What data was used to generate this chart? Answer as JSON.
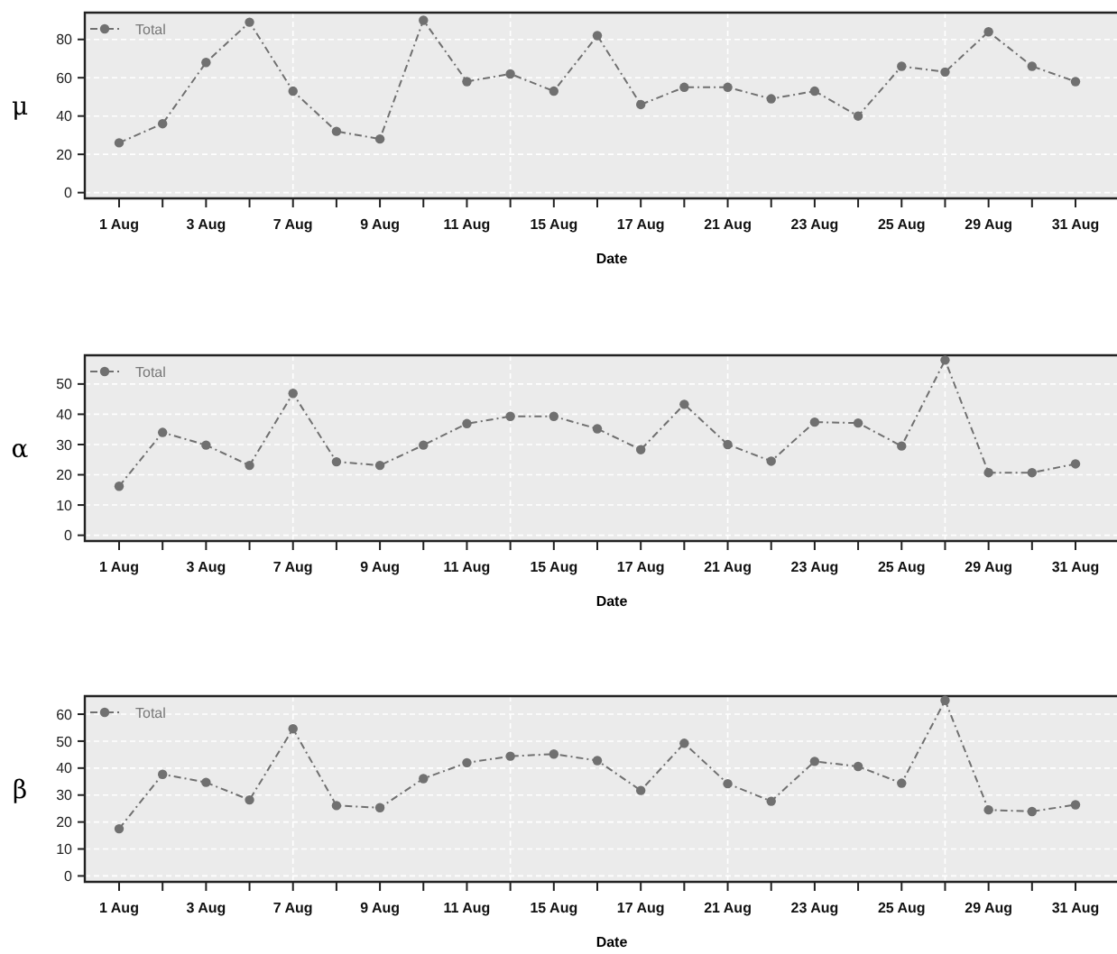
{
  "chart_data": [
    {
      "type": "line",
      "ylabel": "μ",
      "xlabel": "Date",
      "categories": [
        "1 Aug",
        null,
        "3 Aug",
        null,
        "7 Aug",
        null,
        "9 Aug",
        null,
        "11 Aug",
        null,
        "15 Aug",
        null,
        "17 Aug",
        null,
        "21 Aug",
        null,
        "23 Aug",
        null,
        "25 Aug",
        null,
        "29 Aug",
        null,
        "31 Aug"
      ],
      "series": [
        {
          "name": "Total",
          "color": "#707070",
          "values": [
            26,
            36,
            68,
            89,
            53,
            32,
            28,
            90,
            58,
            62,
            53,
            82,
            46,
            55,
            55,
            49,
            53,
            40,
            66,
            63,
            84,
            66,
            58
          ]
        }
      ],
      "ylim": [
        -3,
        94
      ],
      "yticks": [
        0,
        20,
        40,
        60,
        80
      ],
      "grid": true,
      "legend": "top left",
      "marker": "circle",
      "line_style": "dashed"
    },
    {
      "type": "line",
      "ylabel": "α",
      "xlabel": "Date",
      "categories": [
        "1 Aug",
        null,
        "3 Aug",
        null,
        "7 Aug",
        null,
        "9 Aug",
        null,
        "11 Aug",
        null,
        "15 Aug",
        null,
        "17 Aug",
        null,
        "21 Aug",
        null,
        "23 Aug",
        null,
        "25 Aug",
        null,
        "29 Aug",
        null,
        "31 Aug"
      ],
      "series": [
        {
          "name": "Total",
          "color": "#707070",
          "values": [
            16.2,
            34,
            29.8,
            23.1,
            46.9,
            24.3,
            23.1,
            29.8,
            36.9,
            39.3,
            39.3,
            35.2,
            28.3,
            43.3,
            30,
            24.5,
            37.4,
            37.1,
            29.5,
            57.9,
            20.7,
            20.7,
            23.6
          ]
        }
      ],
      "ylim": [
        -1.9,
        59.5
      ],
      "yticks": [
        0,
        10,
        20,
        30,
        40,
        50
      ],
      "grid": true,
      "legend": "top left",
      "marker": "circle",
      "line_style": "dashed"
    },
    {
      "type": "line",
      "ylabel": "β",
      "xlabel": "Date",
      "categories": [
        "1 Aug",
        null,
        "3 Aug",
        null,
        "7 Aug",
        null,
        "9 Aug",
        null,
        "11 Aug",
        null,
        "15 Aug",
        null,
        "17 Aug",
        null,
        "21 Aug",
        null,
        "23 Aug",
        null,
        "25 Aug",
        null,
        "29 Aug",
        null,
        "31 Aug"
      ],
      "series": [
        {
          "name": "Total",
          "color": "#707070",
          "values": [
            17.5,
            37.7,
            34.7,
            28.2,
            54.6,
            26.1,
            25.3,
            36.1,
            42,
            44.4,
            45.2,
            42.8,
            31.7,
            49.2,
            34.2,
            27.7,
            42.5,
            40.6,
            34.4,
            65.1,
            24.5,
            23.9,
            26.4
          ]
        }
      ],
      "ylim": [
        -2.2,
        66.7
      ],
      "yticks": [
        0,
        10,
        20,
        30,
        40,
        50,
        60
      ],
      "grid": true,
      "legend": "top left",
      "marker": "circle",
      "line_style": "dashed"
    }
  ]
}
